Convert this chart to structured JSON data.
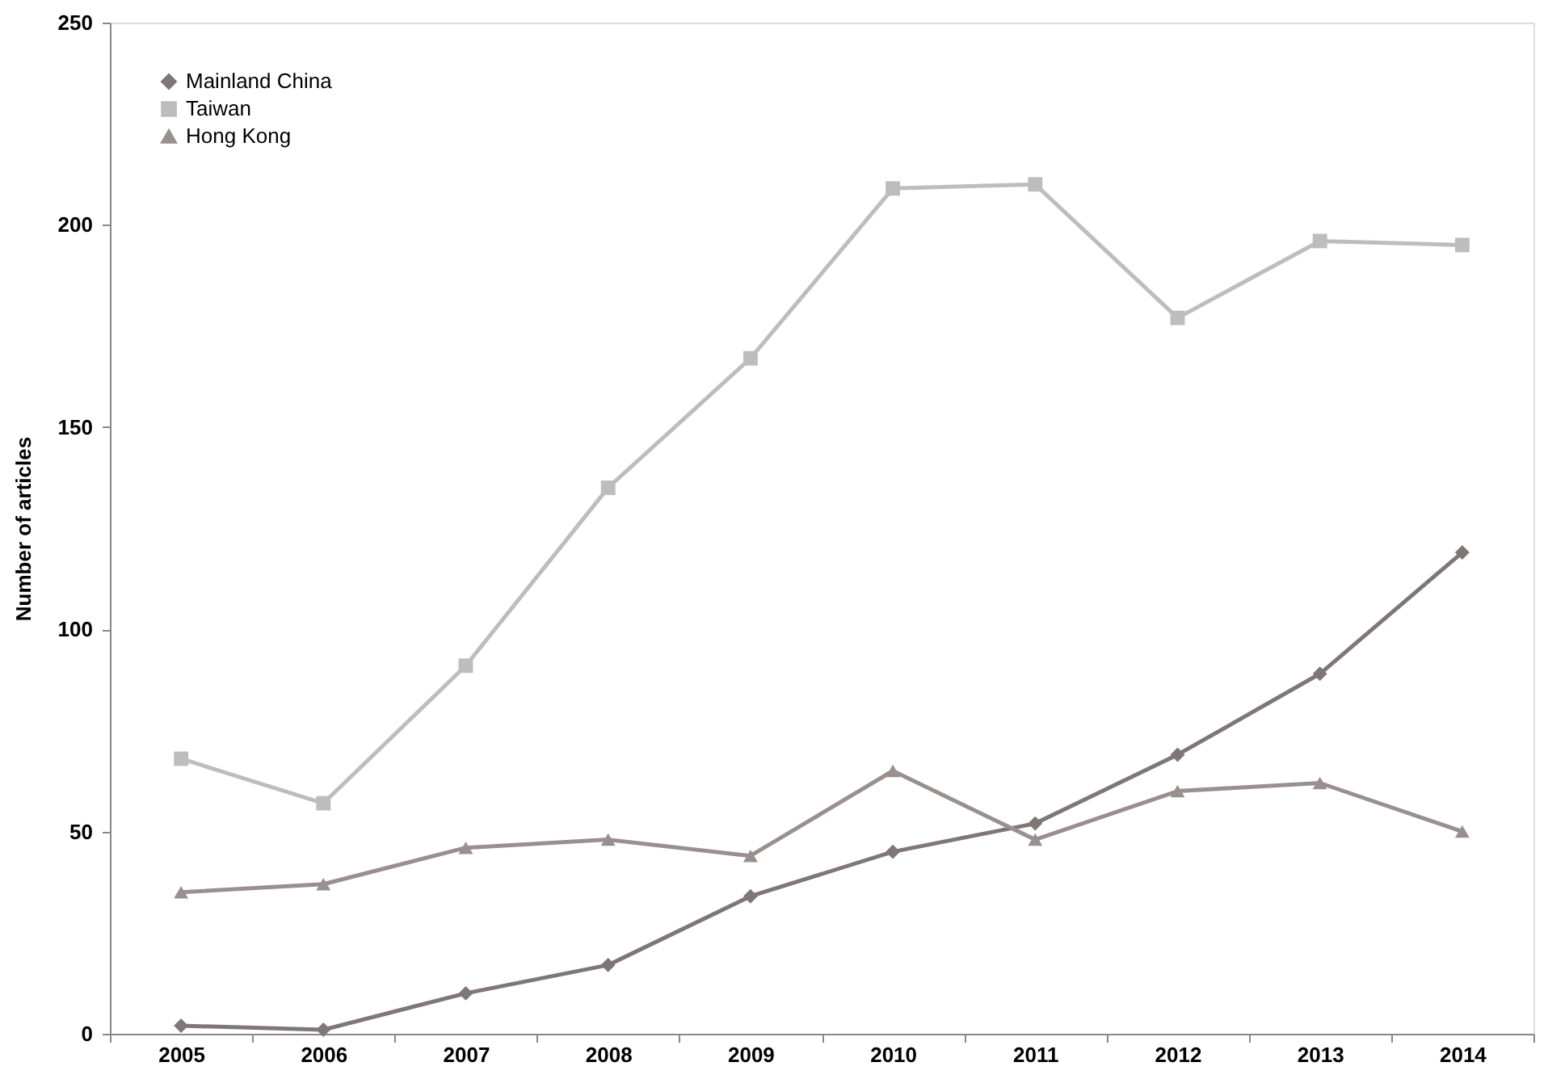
{
  "chart_data": {
    "type": "line",
    "ylabel": "Number of articles",
    "categories": [
      "2005",
      "2006",
      "2007",
      "2008",
      "2009",
      "2010",
      "2011",
      "2012",
      "2013",
      "2014"
    ],
    "series": [
      {
        "name": "Mainland China",
        "color": "#7f7777",
        "marker": "diamond",
        "values": [
          2,
          1,
          10,
          17,
          34,
          45,
          52,
          69,
          89,
          119
        ]
      },
      {
        "name": "Taiwan",
        "color": "#bdbdbd",
        "marker": "square",
        "values": [
          68,
          57,
          91,
          135,
          167,
          209,
          210,
          177,
          196,
          195
        ]
      },
      {
        "name": "Hong Kong",
        "color": "#9a8f8f",
        "marker": "triangle",
        "values": [
          35,
          37,
          46,
          48,
          44,
          65,
          48,
          60,
          62,
          50
        ]
      }
    ],
    "ylim": [
      0,
      250
    ],
    "yticks": [
      0,
      50,
      100,
      150,
      200,
      250
    ],
    "grid": false,
    "legend": "top left",
    "line_style": "solid"
  }
}
